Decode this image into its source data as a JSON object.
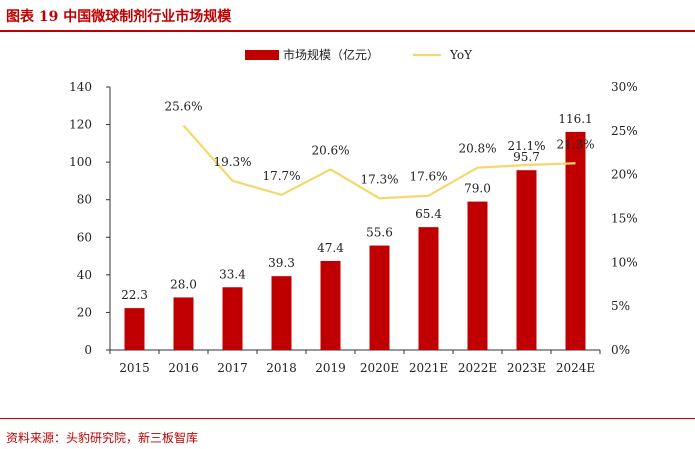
{
  "figure_title": "图表 19  中国微球制剂行业市场规模",
  "source": "资料来源：头豹研究院，新三板智库",
  "chart_data": {
    "type": "bar+line",
    "categories": [
      "2015",
      "2016",
      "2017",
      "2018",
      "2019",
      "2020E",
      "2021E",
      "2022E",
      "2023E",
      "2024E"
    ],
    "series": [
      {
        "name": "市场规模（亿元）",
        "type": "bar",
        "axis": "left",
        "color": "#c00000",
        "values": [
          22.3,
          28.0,
          33.4,
          39.3,
          47.4,
          55.6,
          65.4,
          79.0,
          95.7,
          116.1
        ],
        "labels": [
          "22.3",
          "28.0",
          "33.4",
          "39.3",
          "47.4",
          "55.6",
          "65.4",
          "79.0",
          "95.7",
          "116.1"
        ]
      },
      {
        "name": "YoY",
        "type": "line",
        "axis": "right",
        "color": "#f5d76e",
        "values": [
          null,
          25.6,
          19.3,
          17.7,
          20.6,
          17.3,
          17.6,
          20.8,
          21.1,
          21.3
        ],
        "labels": [
          "",
          "25.6%",
          "19.3%",
          "17.7%",
          "20.6%",
          "17.3%",
          "17.6%",
          "20.8%",
          "21.1%",
          "21.3%"
        ]
      }
    ],
    "y_left": {
      "min": 0,
      "max": 140,
      "ticks": [
        "0",
        "20",
        "40",
        "60",
        "80",
        "100",
        "120",
        "140"
      ]
    },
    "y_right": {
      "min": 0,
      "max": 30,
      "ticks": [
        "0%",
        "5%",
        "10%",
        "15%",
        "20%",
        "25%",
        "30%"
      ]
    },
    "legend_position": "top-center",
    "grid": false
  }
}
